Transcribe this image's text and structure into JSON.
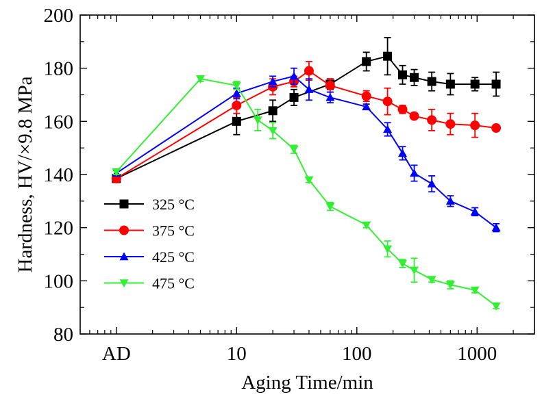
{
  "chart_data": {
    "type": "line",
    "xlabel": "Aging Time/min",
    "ylabel": "Hardness, HV/×9.8 MPa",
    "x_scale": "log",
    "xlim": [
      0.5,
      3000
    ],
    "ylim": [
      80,
      200
    ],
    "x_ticks": [
      {
        "value": 1,
        "label": "AD"
      },
      {
        "value": 10,
        "label": "10"
      },
      {
        "value": 100,
        "label": "100"
      },
      {
        "value": 1000,
        "label": "1000"
      }
    ],
    "y_ticks": [
      80,
      100,
      120,
      140,
      160,
      180,
      200
    ],
    "grid": false,
    "legend_position": "lower-left",
    "series": [
      {
        "name": "325 °C",
        "color": "#000000",
        "marker": "square",
        "x": [
          1,
          10,
          20,
          30,
          60,
          120,
          180,
          240,
          300,
          420,
          600,
          960,
          1440
        ],
        "y": [
          138.5,
          160,
          164,
          169,
          174,
          182.5,
          184.5,
          177.5,
          176.5,
          175,
          174,
          174,
          174
        ],
        "err": [
          1.5,
          5,
          4,
          3,
          2,
          3.5,
          7,
          3.5,
          3,
          3.5,
          4,
          2.5,
          4.5
        ]
      },
      {
        "name": "375 °C",
        "color": "#ff0000",
        "marker": "circle",
        "x": [
          1,
          10,
          20,
          30,
          40,
          60,
          120,
          180,
          240,
          300,
          420,
          600,
          960,
          1440
        ],
        "y": [
          138.5,
          166,
          173,
          175,
          179,
          173.5,
          169.5,
          167.5,
          164.5,
          162,
          160.5,
          159,
          158.5,
          157.5
        ],
        "err": [
          1.5,
          3,
          3,
          2,
          3.5,
          2.5,
          2,
          5,
          1.5,
          1,
          4,
          4,
          4.5,
          1
        ]
      },
      {
        "name": "425 °C",
        "color": "#0000ff",
        "marker": "triangle-up",
        "x": [
          1,
          10,
          20,
          30,
          40,
          60,
          120,
          180,
          240,
          300,
          420,
          600,
          960,
          1440
        ],
        "y": [
          140.5,
          170.5,
          175,
          177,
          172,
          169,
          165.5,
          157,
          148,
          140.5,
          136.5,
          130,
          126,
          120
        ],
        "err": [
          1,
          2,
          2,
          3,
          4,
          2,
          1,
          2.5,
          2.5,
          3,
          3,
          2,
          1.5,
          1.5
        ]
      },
      {
        "name": "475 °C",
        "color": "#33ee33",
        "marker": "triangle-down",
        "x": [
          1,
          5,
          10,
          15,
          20,
          30,
          40,
          60,
          120,
          180,
          240,
          300,
          420,
          600,
          960,
          1440
        ],
        "y": [
          141,
          176,
          173.5,
          160.5,
          156.5,
          149.5,
          138,
          128,
          121,
          112,
          106.5,
          104,
          100.5,
          98.5,
          96.5,
          90.5
        ],
        "err": [
          1,
          1,
          1.5,
          4,
          3,
          1.5,
          1,
          1.5,
          1,
          3,
          1.5,
          4.5,
          1,
          1.5,
          1,
          1
        ]
      }
    ]
  }
}
